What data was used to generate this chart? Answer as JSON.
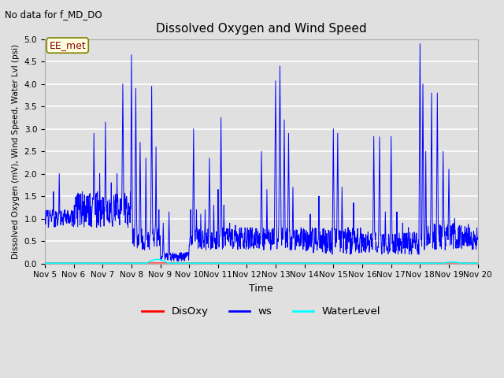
{
  "title": "Dissolved Oxygen and Wind Speed",
  "xlabel": "Time",
  "ylabel": "Dissolved Oxygen (mV), Wind Speed, Water Lvl (psi)",
  "top_label": "No data for f_MD_DO",
  "box_label": "EE_met",
  "ylim": [
    0.0,
    5.0
  ],
  "yticks": [
    0.0,
    0.5,
    1.0,
    1.5,
    2.0,
    2.5,
    3.0,
    3.5,
    4.0,
    4.5,
    5.0
  ],
  "xtick_labels": [
    "Nov 5",
    "Nov 6",
    "Nov 7",
    "Nov 8",
    "Nov 9",
    "Nov 10",
    "Nov 11",
    "Nov 12",
    "Nov 13",
    "Nov 14",
    "Nov 15",
    "Nov 16",
    "Nov 17",
    "Nov 18",
    "Nov 19",
    "Nov 20"
  ],
  "background_color": "#e0e0e0",
  "plot_bg_color": "#e0e0e0",
  "grid_color": "white",
  "ws_color": "blue",
  "disoxy_color": "red",
  "waterlevel_color": "cyan",
  "legend_labels": [
    "DisOxy",
    "ws",
    "WaterLevel"
  ],
  "legend_colors": [
    "red",
    "blue",
    "cyan"
  ]
}
